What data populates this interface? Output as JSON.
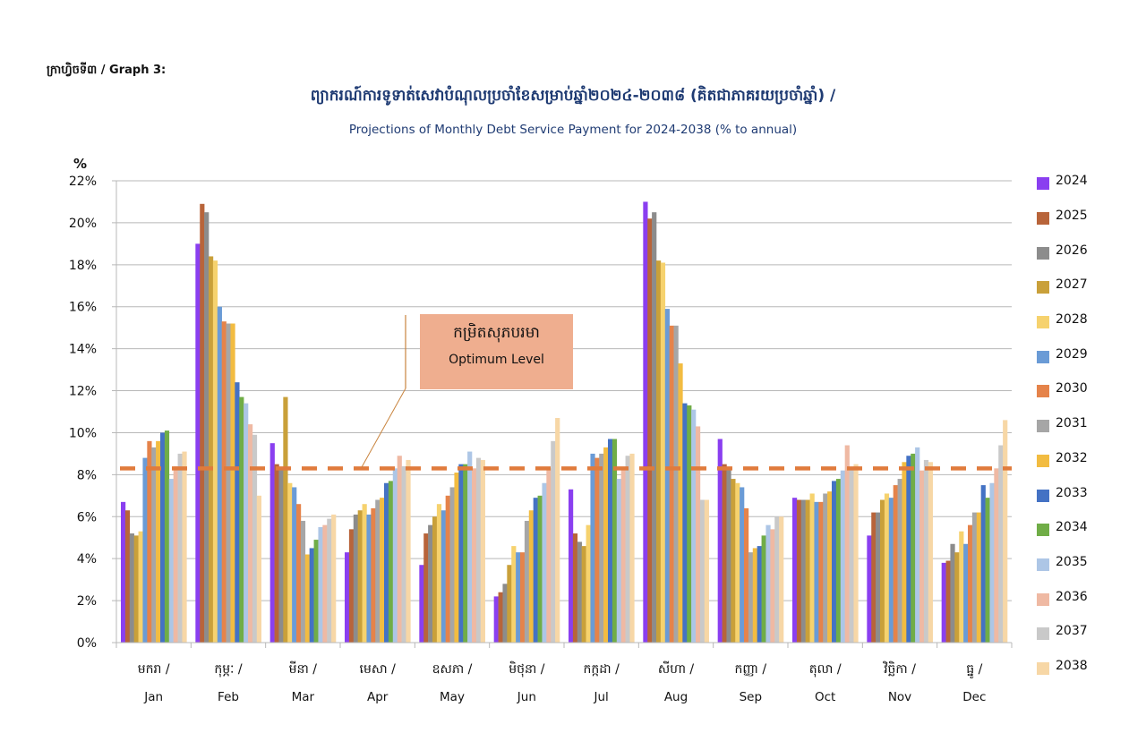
{
  "header": {
    "graph_label": "ក្រាហ្វិចទី៣ / Graph 3:",
    "title_km": "ព្យាករណ៍ការទូទាត់សេវាបំណុលប្រចាំខែសម្រាប់ឆ្នាំ២០២៤-២០៣៨ (គិតជាភាគរយប្រចាំឆ្នាំ) /",
    "title_en": "Projections of Monthly Debt Service Payment for 2024-2038 (% to annual)"
  },
  "annotation": {
    "label_km": "កម្រិតសុភបរមា",
    "label_en": "Optimum Level",
    "color": "#efae8f"
  },
  "chart_data": {
    "type": "bar",
    "title": "Projections of Monthly Debt Service Payment for 2024-2038 (% to annual)",
    "xlabel": "",
    "ylabel": "%",
    "ylim": [
      0,
      22
    ],
    "yticks": [
      "0%",
      "2%",
      "4%",
      "6%",
      "8%",
      "10%",
      "12%",
      "14%",
      "16%",
      "18%",
      "20%",
      "22%"
    ],
    "grid": true,
    "legend_position": "right",
    "categories_km": [
      "មករា /",
      "កុម្ភៈ /",
      "មីនា /",
      "មេសា /",
      "ឧសភា /",
      "មិថុនា /",
      "កក្កដា /",
      "សីហា /",
      "កញ្ញា /",
      "តុលា /",
      "វិច្ឆិកា /",
      "ធ្នូ /"
    ],
    "categories": [
      "Jan",
      "Feb",
      "Mar",
      "Apr",
      "May",
      "Jun",
      "Jul",
      "Aug",
      "Sep",
      "Oct",
      "Nov",
      "Dec"
    ],
    "reference_line": {
      "name": "Optimum Level",
      "value": 8.3,
      "color": "#e07b3c",
      "style": "dashed"
    },
    "series": [
      {
        "name": "2024",
        "color": "#8a3ff0",
        "values": [
          6.7,
          19.0,
          9.5,
          4.3,
          3.7,
          2.2,
          7.3,
          21.0,
          9.7,
          6.9,
          5.1,
          3.8
        ]
      },
      {
        "name": "2025",
        "color": "#b8643a",
        "values": [
          6.3,
          20.9,
          8.5,
          5.4,
          5.2,
          2.4,
          5.2,
          20.2,
          8.5,
          6.8,
          6.2,
          3.9
        ]
      },
      {
        "name": "2026",
        "color": "#8c8c8c",
        "values": [
          5.2,
          20.5,
          8.3,
          6.1,
          5.6,
          2.8,
          4.8,
          20.5,
          8.3,
          6.8,
          6.2,
          4.7
        ]
      },
      {
        "name": "2027",
        "color": "#c9a03a",
        "values": [
          5.1,
          18.4,
          11.7,
          6.3,
          6.0,
          3.7,
          4.6,
          18.2,
          7.8,
          6.8,
          6.8,
          4.3
        ]
      },
      {
        "name": "2028",
        "color": "#f6d26e",
        "values": [
          5.3,
          18.2,
          7.6,
          6.6,
          6.6,
          4.6,
          5.6,
          18.1,
          7.6,
          7.1,
          7.1,
          5.3
        ]
      },
      {
        "name": "2029",
        "color": "#6a9bd6",
        "values": [
          8.8,
          16.0,
          7.4,
          6.1,
          6.3,
          4.3,
          9.0,
          15.9,
          7.4,
          6.7,
          6.9,
          4.7
        ]
      },
      {
        "name": "2030",
        "color": "#e5834a",
        "values": [
          9.6,
          15.3,
          6.6,
          6.4,
          7.0,
          4.3,
          8.8,
          15.1,
          6.4,
          6.7,
          7.5,
          5.6
        ]
      },
      {
        "name": "2031",
        "color": "#a6a6a6",
        "values": [
          9.3,
          15.2,
          5.8,
          6.8,
          7.4,
          5.8,
          9.0,
          15.1,
          4.3,
          7.1,
          7.8,
          6.2
        ]
      },
      {
        "name": "2032",
        "color": "#f2bc41",
        "values": [
          9.6,
          15.2,
          4.2,
          6.9,
          8.1,
          6.3,
          9.3,
          13.3,
          4.5,
          7.2,
          8.6,
          6.2
        ]
      },
      {
        "name": "2033",
        "color": "#4472c4",
        "values": [
          10.0,
          12.4,
          4.5,
          7.6,
          8.5,
          6.9,
          9.7,
          11.4,
          4.6,
          7.7,
          8.9,
          7.5
        ]
      },
      {
        "name": "2034",
        "color": "#70ad47",
        "values": [
          10.1,
          11.7,
          4.9,
          7.7,
          8.5,
          7.0,
          9.7,
          11.3,
          5.1,
          7.8,
          9.0,
          6.9
        ]
      },
      {
        "name": "2035",
        "color": "#adc6e6",
        "values": [
          7.8,
          11.4,
          5.5,
          8.3,
          9.1,
          7.6,
          7.8,
          11.1,
          5.6,
          8.2,
          9.3,
          7.6
        ]
      },
      {
        "name": "2036",
        "color": "#efb9a3",
        "values": [
          8.4,
          10.4,
          5.6,
          8.9,
          8.3,
          8.3,
          8.3,
          10.3,
          5.4,
          9.4,
          8.2,
          8.3
        ]
      },
      {
        "name": "2037",
        "color": "#c9c9c9",
        "values": [
          9.0,
          9.9,
          5.9,
          8.4,
          8.8,
          9.6,
          8.9,
          6.8,
          6.0,
          8.3,
          8.7,
          9.4
        ]
      },
      {
        "name": "2038",
        "color": "#f7d7a6",
        "values": [
          9.1,
          7.0,
          6.1,
          8.7,
          8.7,
          10.7,
          9.0,
          6.8,
          6.0,
          8.5,
          8.6,
          10.6
        ]
      }
    ]
  }
}
